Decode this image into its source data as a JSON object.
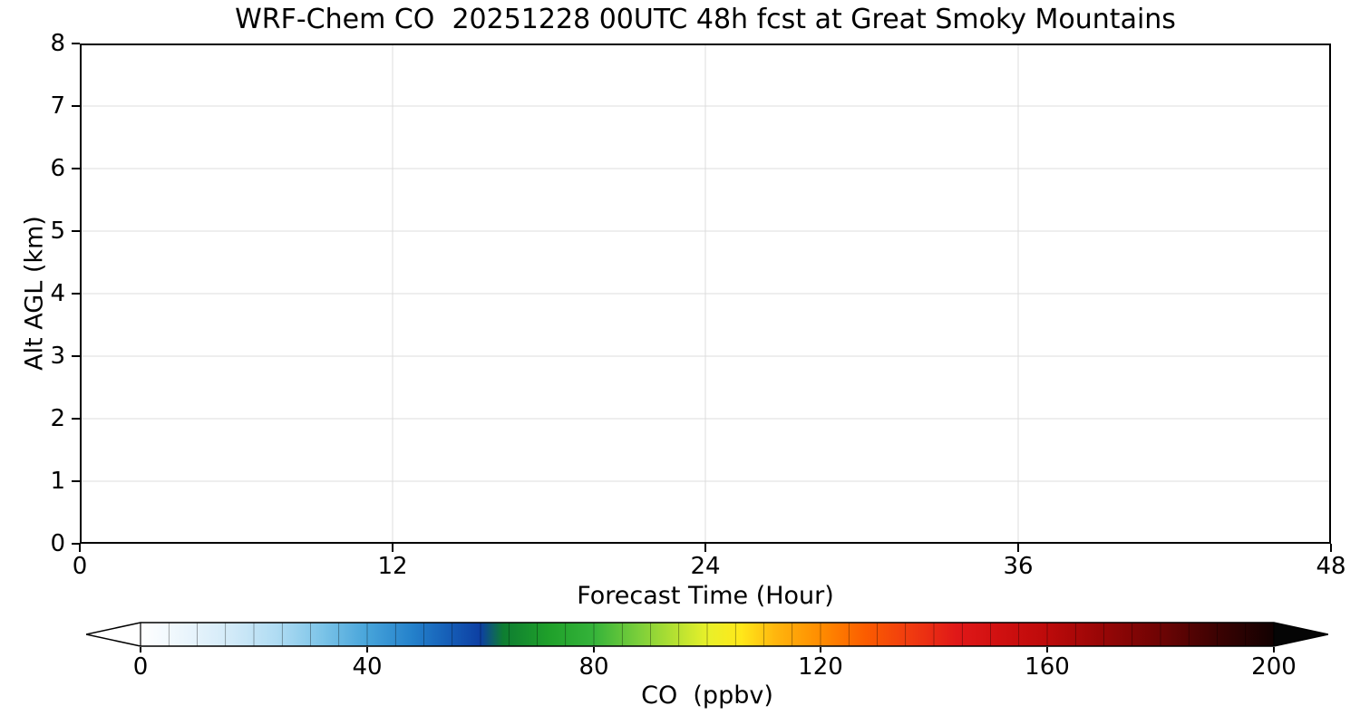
{
  "chart_data": {
    "type": "heatmap",
    "title": "WRF-Chem CO  20251228 00UTC 48h fcst at Great Smoky Mountains",
    "xlabel": "Forecast Time (Hour)",
    "ylabel": "Alt AGL (km)",
    "xlim": [
      0,
      48
    ],
    "ylim": [
      0,
      8
    ],
    "x_ticks": [
      0,
      12,
      24,
      36,
      48
    ],
    "y_ticks": [
      0,
      1,
      2,
      3,
      4,
      5,
      6,
      7,
      8
    ],
    "grid": true,
    "grid_color": "#dcdcdc",
    "series": [],
    "note": "Plot area is blank - no CO cross-section field is rendered inside the axes.",
    "colorbar": {
      "label": "CO  (ppbv)",
      "ticks": [
        0,
        40,
        80,
        120,
        160,
        200
      ],
      "vmin": 0,
      "vmax": 200,
      "extend": "both",
      "under_color": "#ffffff",
      "over_color": "#050505",
      "segment_step": 5,
      "colormap": [
        [
          0,
          "#ffffff"
        ],
        [
          8,
          "#eaf5fc"
        ],
        [
          16,
          "#d2eaf8"
        ],
        [
          24,
          "#b0dcf3"
        ],
        [
          32,
          "#7cc4e8"
        ],
        [
          40,
          "#47a4da"
        ],
        [
          48,
          "#2481cb"
        ],
        [
          54,
          "#1660b8"
        ],
        [
          60,
          "#0d3fa3"
        ],
        [
          64,
          "#0e7d31"
        ],
        [
          72,
          "#1fa02a"
        ],
        [
          80,
          "#35b33a"
        ],
        [
          88,
          "#7ccf3a"
        ],
        [
          94,
          "#b2e032"
        ],
        [
          100,
          "#e8f02a"
        ],
        [
          106,
          "#ffe81a"
        ],
        [
          112,
          "#ffb60e"
        ],
        [
          120,
          "#ff8c00"
        ],
        [
          128,
          "#fb5c00"
        ],
        [
          136,
          "#f03a10"
        ],
        [
          144,
          "#e01818"
        ],
        [
          152,
          "#cf1010"
        ],
        [
          160,
          "#bd0a0a"
        ],
        [
          170,
          "#960606"
        ],
        [
          180,
          "#6e0404"
        ],
        [
          190,
          "#3c0202"
        ],
        [
          200,
          "#120101"
        ]
      ]
    }
  }
}
